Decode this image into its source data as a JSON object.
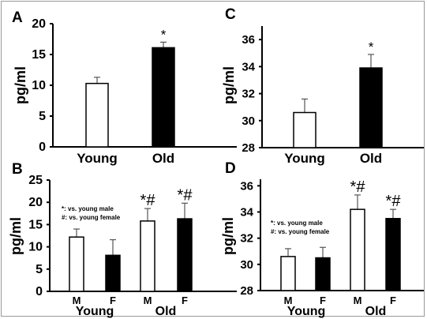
{
  "chart_data": [
    {
      "panel": "A",
      "type": "bar",
      "ylabel": "pg/ml",
      "ylim": [
        0,
        20
      ],
      "yticks": [
        0,
        5,
        10,
        15,
        20
      ],
      "bars": [
        {
          "label": "Young",
          "value": 10.3,
          "error": 1.0,
          "fill": "#ffffff",
          "mark": ""
        },
        {
          "label": "Old",
          "value": 16.1,
          "error": 0.9,
          "fill": "#000000",
          "mark": "*"
        }
      ]
    },
    {
      "panel": "C",
      "type": "bar",
      "ylabel": "pg/ml",
      "ylim": [
        28,
        37
      ],
      "yticks": [
        28,
        30,
        32,
        34,
        36
      ],
      "bars": [
        {
          "label": "Young",
          "value": 30.6,
          "error": 1.0,
          "fill": "#ffffff",
          "mark": ""
        },
        {
          "label": "Old",
          "value": 33.9,
          "error": 1.0,
          "fill": "#000000",
          "mark": "*"
        }
      ]
    },
    {
      "panel": "B",
      "type": "bar",
      "ylabel": "pg/ml",
      "ylim": [
        0,
        25
      ],
      "yticks": [
        0,
        5,
        10,
        15,
        20,
        25
      ],
      "groups": [
        "Young",
        "Old"
      ],
      "legend": [
        "*: vs. young male",
        "#: vs. young female"
      ],
      "bars": [
        {
          "label": "M",
          "group": "Young",
          "value": 12.2,
          "error": 1.8,
          "fill": "#ffffff",
          "mark": ""
        },
        {
          "label": "F",
          "group": "Young",
          "value": 8.1,
          "error": 3.5,
          "fill": "#000000",
          "mark": ""
        },
        {
          "label": "M",
          "group": "Old",
          "value": 15.8,
          "error": 2.8,
          "fill": "#ffffff",
          "mark": "*#"
        },
        {
          "label": "F",
          "group": "Old",
          "value": 16.3,
          "error": 3.5,
          "fill": "#000000",
          "mark": "*#"
        }
      ]
    },
    {
      "panel": "D",
      "type": "bar",
      "ylabel": "pg/ml",
      "ylim": [
        28,
        36.5
      ],
      "yticks": [
        28,
        30,
        32,
        34,
        36
      ],
      "groups": [
        "Young",
        "Old"
      ],
      "legend": [
        "*: vs. young male",
        "#: vs. young female"
      ],
      "bars": [
        {
          "label": "M",
          "group": "Young",
          "value": 30.6,
          "error": 0.6,
          "fill": "#ffffff",
          "mark": ""
        },
        {
          "label": "F",
          "group": "Young",
          "value": 30.5,
          "error": 0.8,
          "fill": "#000000",
          "mark": ""
        },
        {
          "label": "M",
          "group": "Old",
          "value": 34.2,
          "error": 1.1,
          "fill": "#ffffff",
          "mark": "*#"
        },
        {
          "label": "F",
          "group": "Old",
          "value": 33.5,
          "error": 0.7,
          "fill": "#000000",
          "mark": "*#"
        }
      ]
    }
  ]
}
